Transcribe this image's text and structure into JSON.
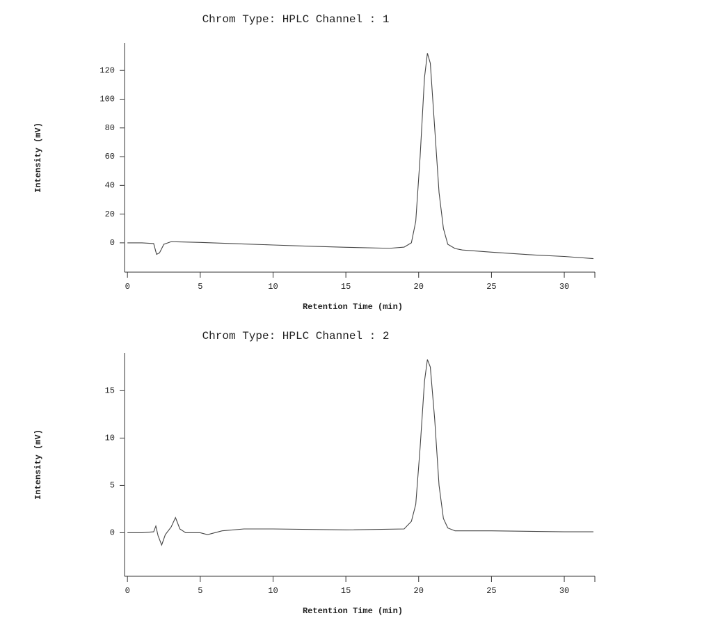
{
  "chart_data": [
    {
      "type": "line",
      "title": "Chrom Type: HPLC Channel : 1",
      "x_label": "Retention Time (min)",
      "y_label": "Intensity (mV)",
      "xlim": [
        -0.2,
        32.1
      ],
      "xticks": [
        0,
        5,
        10,
        15,
        20,
        25,
        30
      ],
      "ylim": [
        -20.4,
        139
      ],
      "yticks": [
        0,
        20,
        40,
        60,
        80,
        100,
        120
      ],
      "color": "#444444",
      "x": [
        0,
        1,
        1.8,
        2.0,
        2.2,
        2.5,
        3,
        5,
        8,
        10,
        12,
        15,
        18,
        19,
        19.5,
        19.8,
        20.1,
        20.4,
        20.6,
        20.8,
        21.1,
        21.4,
        21.7,
        22,
        22.5,
        23,
        25,
        28,
        30,
        32
      ],
      "values": [
        0,
        0,
        -0.5,
        -8,
        -7,
        -1,
        0.8,
        0.3,
        -0.8,
        -1.5,
        -2.2,
        -3.1,
        -3.8,
        -3,
        0,
        15,
        60,
        115,
        132,
        125,
        80,
        35,
        10,
        -1,
        -4,
        -5,
        -6.5,
        -8.5,
        -9.5,
        -11
      ]
    },
    {
      "type": "line",
      "title": "Chrom Type: HPLC Channel : 2",
      "x_label": "Retention Time (min)",
      "y_label": "Intensity (mV)",
      "xlim": [
        -0.2,
        32.1
      ],
      "xticks": [
        0,
        5,
        10,
        15,
        20,
        25,
        30
      ],
      "ylim": [
        -4.6,
        19
      ],
      "yticks": [
        0,
        5,
        10,
        15
      ],
      "color": "#444444",
      "x": [
        0,
        1,
        1.8,
        1.95,
        2.1,
        2.35,
        2.6,
        3.0,
        3.3,
        3.6,
        4,
        5,
        5.5,
        6.5,
        8,
        10,
        15,
        19,
        19.5,
        19.8,
        20.1,
        20.4,
        20.6,
        20.8,
        21.1,
        21.4,
        21.7,
        22,
        22.5,
        25,
        30,
        32
      ],
      "values": [
        0,
        0,
        0.1,
        0.7,
        -0.3,
        -1.3,
        -0.2,
        0.6,
        1.6,
        0.4,
        0,
        0,
        -0.2,
        0.2,
        0.4,
        0.4,
        0.3,
        0.4,
        1.2,
        3,
        9,
        16,
        18.3,
        17.5,
        12,
        5,
        1.5,
        0.5,
        0.2,
        0.2,
        0.1,
        0.1
      ]
    }
  ]
}
